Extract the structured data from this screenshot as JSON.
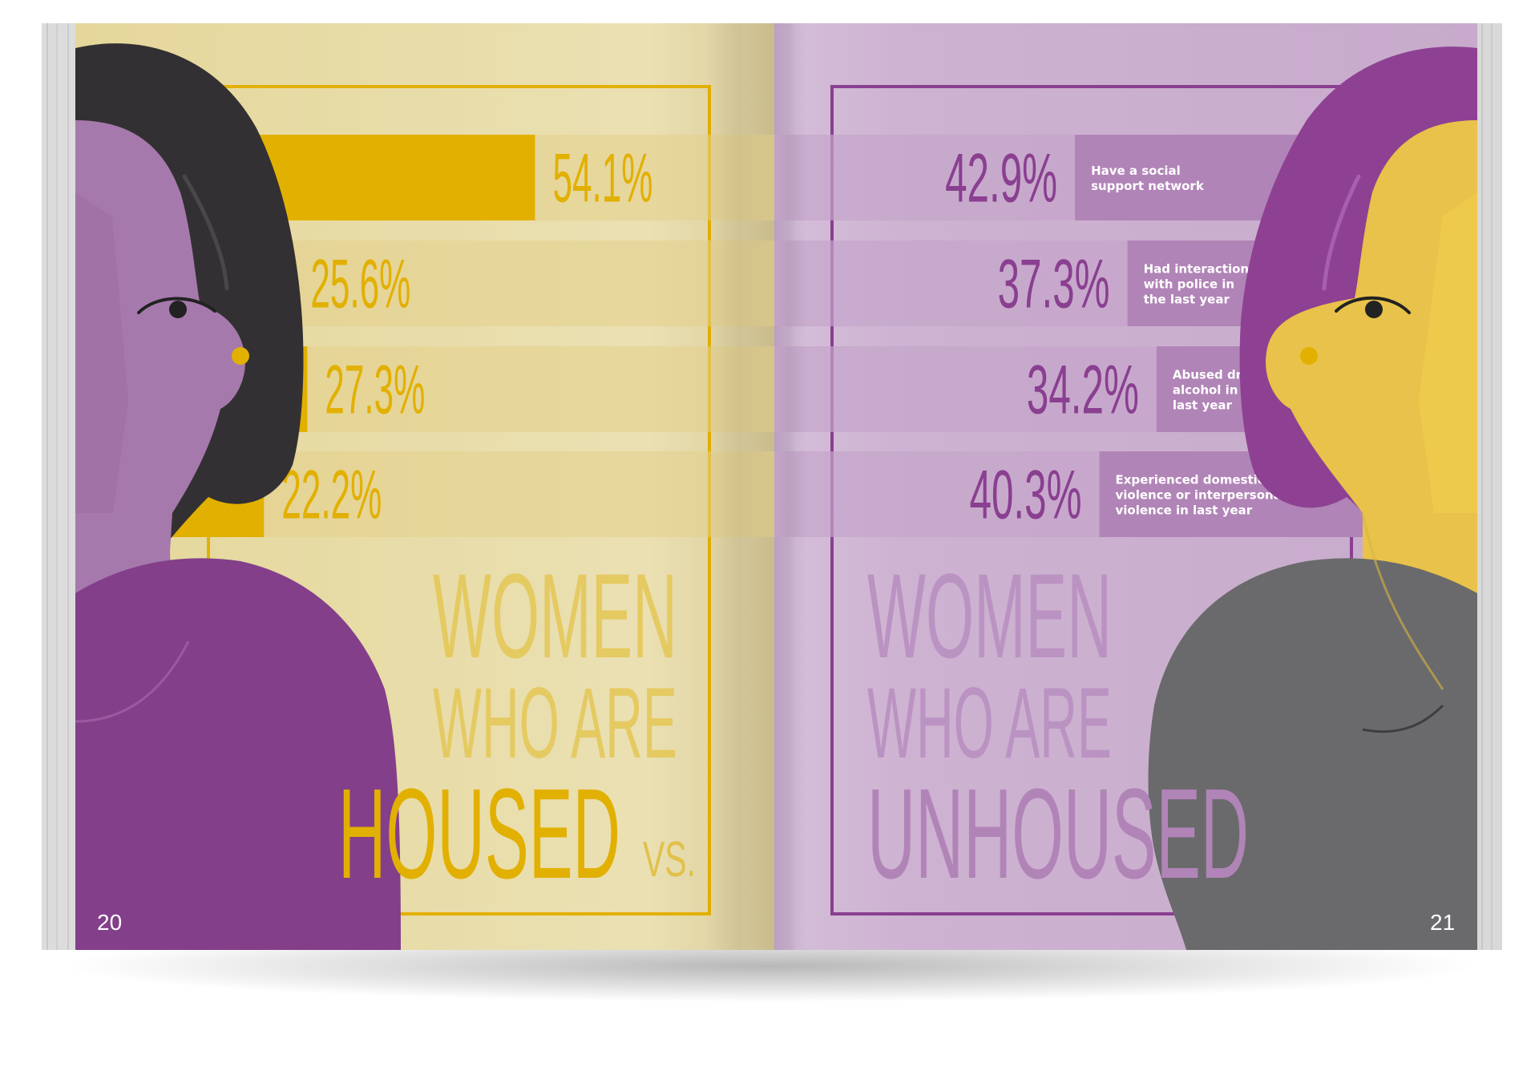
{
  "chart_data": [
    {
      "type": "bar",
      "title_lines": [
        "WOMEN",
        "WHO ARE",
        "HOUSED"
      ],
      "connector": "VS.",
      "values": [
        54.1,
        25.6,
        27.3,
        22.2
      ],
      "labels": [
        "54.1%",
        "25.6%",
        "27.3%",
        "22.2%"
      ]
    },
    {
      "type": "bar",
      "title_lines": [
        "WOMEN",
        "WHO ARE",
        "UNHOUSED"
      ],
      "categories": [
        [
          "Have a social",
          "support network"
        ],
        [
          "Had interactions",
          "with police in",
          "the last year"
        ],
        [
          "Abused drugs or",
          "alcohol in the",
          "last year"
        ],
        [
          "Experienced domestic",
          "violence or interpersonal",
          "violence in last year"
        ]
      ],
      "values": [
        42.9,
        37.3,
        34.2,
        40.3
      ],
      "labels": [
        "42.9%",
        "37.3%",
        "34.2%",
        "40.3%"
      ]
    }
  ],
  "page_numbers": {
    "left": "20",
    "right": "21"
  },
  "colors": {
    "housed_bar": "#E2B000",
    "housed_bg": "#E5D59A",
    "unhoused_bar": "#B184B7",
    "unhoused_bg": "#CDAFD0",
    "purple_text": "#8A3F90",
    "skin_purple": "#A679AC",
    "hair_dark": "#333033",
    "shirt_purple": "#833F8A",
    "skin_yellow": "#E8C24A",
    "hair_purple": "#8E4192",
    "shirt_gray": "#6A6A6C"
  }
}
